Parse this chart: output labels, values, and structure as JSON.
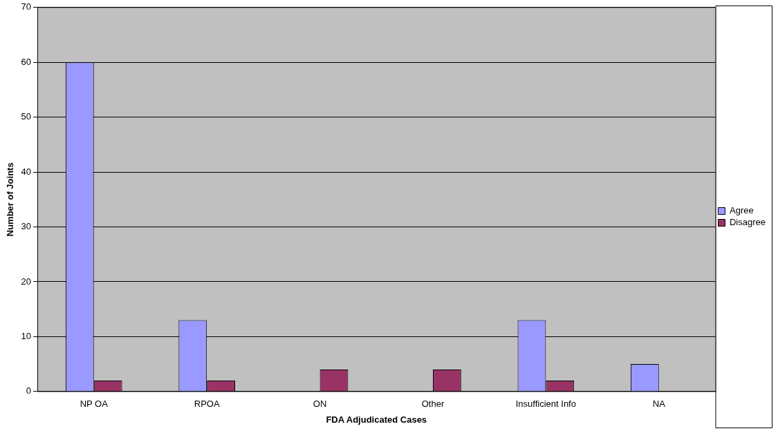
{
  "chart_data": {
    "type": "bar",
    "xlabel": "FDA Adjudicated Cases",
    "ylabel": "Number of Joints",
    "categories": [
      "NP OA",
      "RPOA",
      "ON",
      "Other",
      "Insufficient Info",
      "NA"
    ],
    "series": [
      {
        "name": "Agree",
        "color": "#9999ff",
        "values": [
          60,
          13,
          0,
          0,
          13,
          5
        ]
      },
      {
        "name": "Disagree",
        "color": "#993366",
        "values": [
          2,
          2,
          4,
          4,
          2,
          0
        ]
      }
    ],
    "ylim": [
      0,
      70
    ],
    "yticks": [
      0,
      10,
      20,
      30,
      40,
      50,
      60,
      70
    ],
    "grid": "y",
    "legend": "right"
  }
}
